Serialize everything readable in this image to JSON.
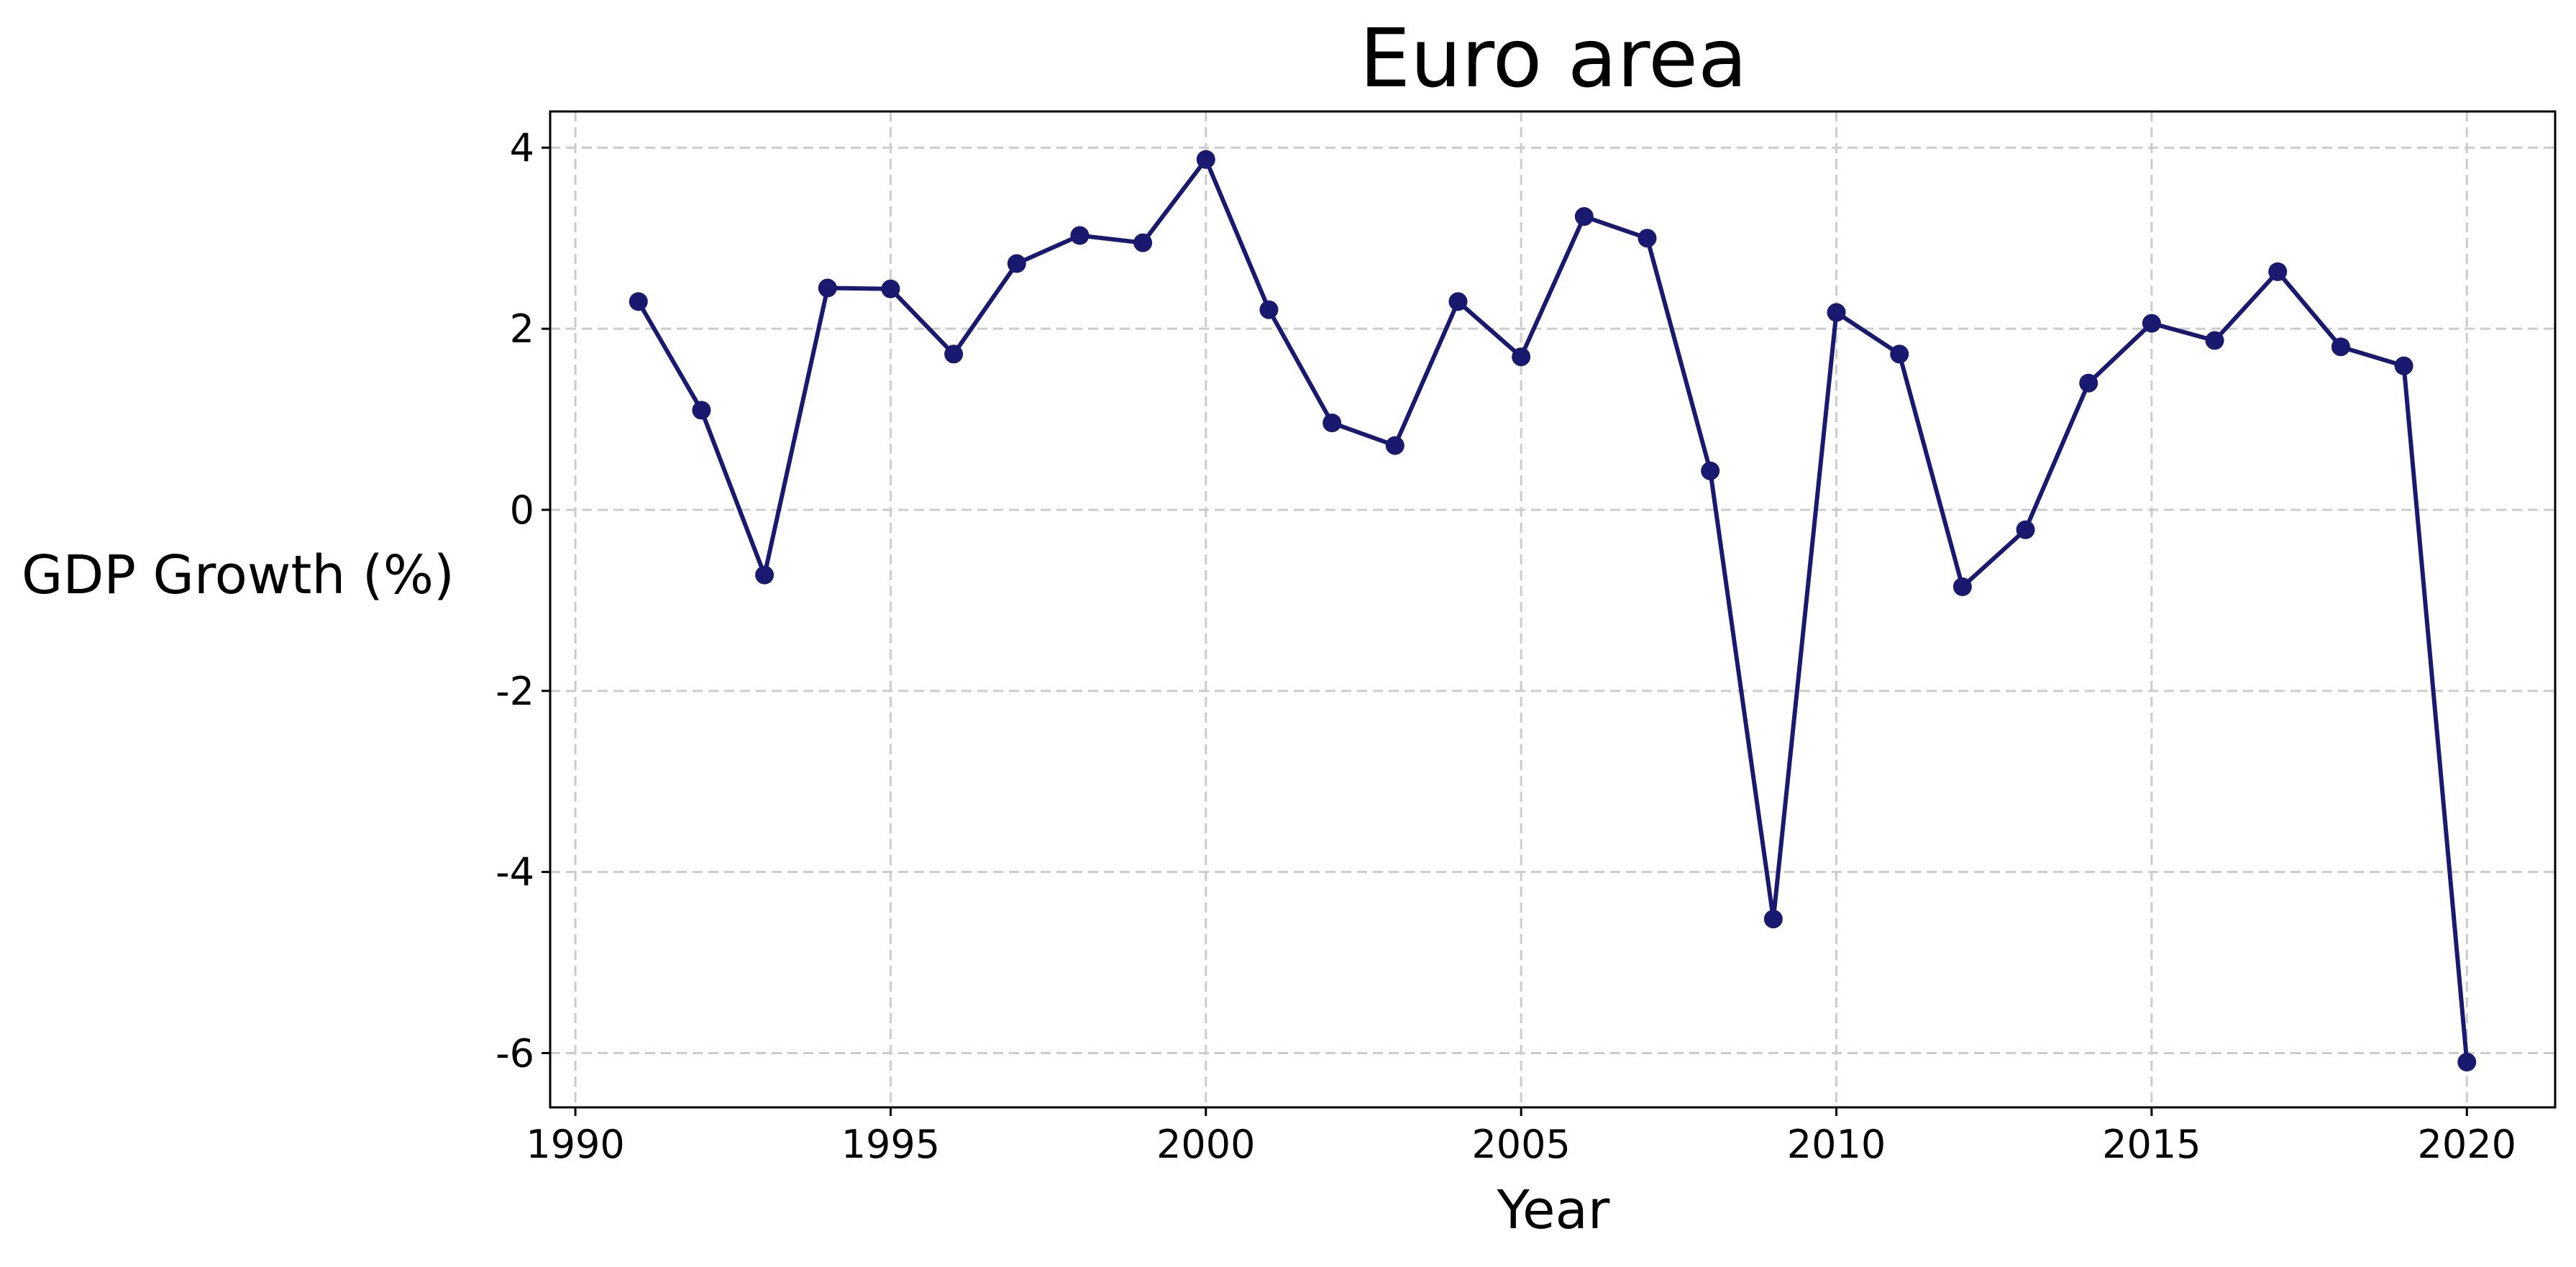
{
  "chart_data": {
    "type": "line",
    "title": "Euro area",
    "xlabel": "Year",
    "ylabel": "GDP Growth (%)",
    "xlim": [
      1989.6,
      2021.4
    ],
    "ylim": [
      -6.6,
      4.4
    ],
    "grid": true,
    "legend": "none",
    "x_ticks": [
      1990,
      1995,
      2000,
      2005,
      2010,
      2015,
      2020
    ],
    "x_tick_labels": [
      "1990",
      "1995",
      "2000",
      "2005",
      "2010",
      "2015",
      "2020"
    ],
    "y_ticks": [
      -6,
      -4,
      -2,
      0,
      2,
      4
    ],
    "y_tick_labels": [
      "-6",
      "-4",
      "-2",
      "0",
      "2",
      "4"
    ],
    "series": [
      {
        "color": "#191970",
        "marker": "circle",
        "x": [
          1991,
          1992,
          1993,
          1994,
          1995,
          1996,
          1997,
          1998,
          1999,
          2000,
          2001,
          2002,
          2003,
          2004,
          2005,
          2006,
          2007,
          2008,
          2009,
          2010,
          2011,
          2012,
          2013,
          2014,
          2015,
          2016,
          2017,
          2018,
          2019,
          2020
        ],
        "y": [
          2.3,
          1.1,
          -0.72,
          2.45,
          2.44,
          1.72,
          2.72,
          3.03,
          2.95,
          3.87,
          2.21,
          0.96,
          0.71,
          2.3,
          1.69,
          3.24,
          3.0,
          0.43,
          -4.52,
          2.18,
          1.72,
          -0.85,
          -0.22,
          1.4,
          2.06,
          1.87,
          2.63,
          1.8,
          1.59,
          -6.1
        ]
      }
    ]
  }
}
